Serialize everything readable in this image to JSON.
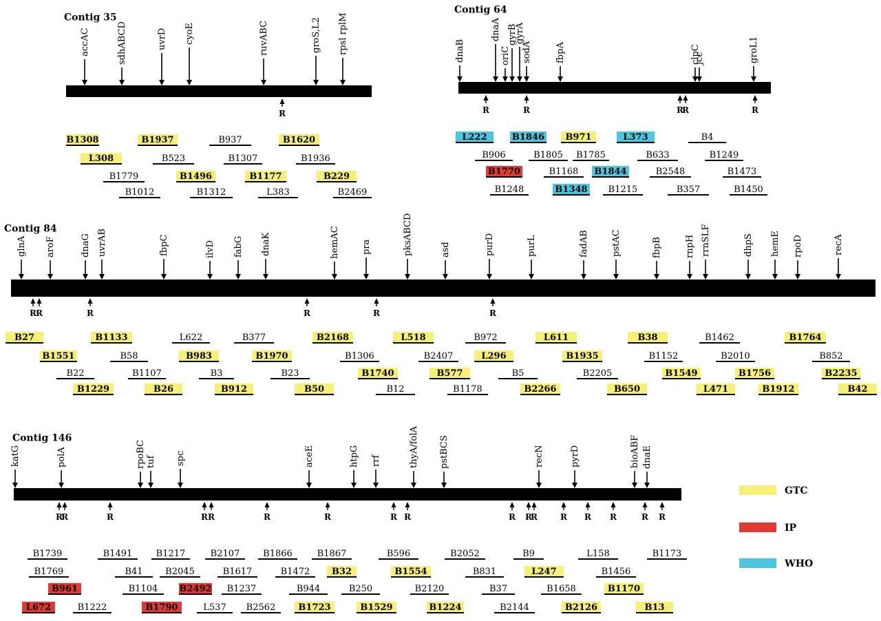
{
  "colors": {
    "GTC": "#f6ef78",
    "IP": "#e03a34",
    "WHO": "#4fc6de",
    "none": "none"
  },
  "legend": [
    {
      "key": "GTC",
      "label": "GTC"
    },
    {
      "key": "IP",
      "label": "IP"
    },
    {
      "key": "WHO",
      "label": "WHO"
    }
  ],
  "contigs": [
    {
      "id": "c35",
      "title": "Contig 35",
      "genes": [
        {
          "label": "accAC"
        },
        {
          "label": "sdhABCD"
        },
        {
          "label": "uvrD"
        },
        {
          "label": "cyoE"
        },
        {
          "label": "ruvABC"
        },
        {
          "label": "groS,L2"
        },
        {
          "label": "rpsl rplM"
        }
      ],
      "r_markers": [
        "R"
      ],
      "clones": [
        {
          "label": "B1308",
          "hl": "GTC"
        },
        {
          "label": "B1937",
          "hl": "GTC"
        },
        {
          "label": "B937",
          "hl": "none"
        },
        {
          "label": "B1620",
          "hl": "GTC"
        },
        {
          "label": "L308",
          "hl": "GTC"
        },
        {
          "label": "B523",
          "hl": "none"
        },
        {
          "label": "B1307",
          "hl": "none"
        },
        {
          "label": "B1936",
          "hl": "none"
        },
        {
          "label": "B1779",
          "hl": "none"
        },
        {
          "label": "B1496",
          "hl": "GTC"
        },
        {
          "label": "B1177",
          "hl": "GTC"
        },
        {
          "label": "B229",
          "hl": "GTC"
        },
        {
          "label": "B1012",
          "hl": "none"
        },
        {
          "label": "B1312",
          "hl": "none"
        },
        {
          "label": "L383",
          "hl": "none"
        },
        {
          "label": "B2469",
          "hl": "none"
        }
      ]
    },
    {
      "id": "c64",
      "title": "Contig 64",
      "genes": [
        {
          "label": "dnaB"
        },
        {
          "label": "dnaA"
        },
        {
          "label": "oriC"
        },
        {
          "label": "gyrB"
        },
        {
          "label": "gyrA"
        },
        {
          "label": "sodA"
        },
        {
          "label": "fbpA"
        },
        {
          "label": "clpC"
        },
        {
          "label": "jcc"
        },
        {
          "label": "groL1"
        }
      ],
      "r_markers": [
        "R",
        "R",
        "R",
        "R",
        "R"
      ],
      "clones": [
        {
          "label": "L222",
          "hl": "WHO"
        },
        {
          "label": "B1846",
          "hl": "WHO"
        },
        {
          "label": "B971",
          "hl": "GTC"
        },
        {
          "label": "L373",
          "hl": "WHO"
        },
        {
          "label": "B4",
          "hl": "none"
        },
        {
          "label": "B906",
          "hl": "none"
        },
        {
          "label": "B1805",
          "hl": "none"
        },
        {
          "label": "B1785",
          "hl": "none"
        },
        {
          "label": "B633",
          "hl": "none"
        },
        {
          "label": "B1249",
          "hl": "none"
        },
        {
          "label": "B1770",
          "hl": "IP"
        },
        {
          "label": "B1168",
          "hl": "none"
        },
        {
          "label": "B1844",
          "hl": "WHO"
        },
        {
          "label": "B2548",
          "hl": "none"
        },
        {
          "label": "B1473",
          "hl": "none"
        },
        {
          "label": "B1248",
          "hl": "none"
        },
        {
          "label": "B1348",
          "hl": "WHO"
        },
        {
          "label": "B1215",
          "hl": "none"
        },
        {
          "label": "B357",
          "hl": "none"
        },
        {
          "label": "B1450",
          "hl": "none"
        }
      ]
    },
    {
      "id": "c84",
      "title": "Contig 84",
      "genes": [
        {
          "label": "glnA"
        },
        {
          "label": "aroF"
        },
        {
          "label": "dnaG"
        },
        {
          "label": "uvrAB"
        },
        {
          "label": "fbpC"
        },
        {
          "label": "ilvD"
        },
        {
          "label": "fabG"
        },
        {
          "label": "dnaK"
        },
        {
          "label": "hemAC"
        },
        {
          "label": "pra"
        },
        {
          "label": "pksABCD"
        },
        {
          "label": "asd"
        },
        {
          "label": "purD"
        },
        {
          "label": "purL"
        },
        {
          "label": "fadAB"
        },
        {
          "label": "pstAC"
        },
        {
          "label": "fbpB"
        },
        {
          "label": "rnpH"
        },
        {
          "label": "rrnSLF"
        },
        {
          "label": "dhpS"
        },
        {
          "label": "hemE"
        },
        {
          "label": "rpoD"
        },
        {
          "label": "recA"
        }
      ],
      "r_markers": [
        "R",
        "R",
        "R",
        "R",
        "R",
        "R"
      ],
      "clones": [
        {
          "label": "B27",
          "hl": "GTC"
        },
        {
          "label": "B1133",
          "hl": "GTC"
        },
        {
          "label": "L622",
          "hl": "none"
        },
        {
          "label": "B377",
          "hl": "none"
        },
        {
          "label": "B2168",
          "hl": "GTC"
        },
        {
          "label": "L518",
          "hl": "GTC"
        },
        {
          "label": "B972",
          "hl": "none"
        },
        {
          "label": "L611",
          "hl": "GTC"
        },
        {
          "label": "B38",
          "hl": "GTC"
        },
        {
          "label": "B1462",
          "hl": "none"
        },
        {
          "label": "B1764",
          "hl": "GTC"
        },
        {
          "label": "B1551",
          "hl": "GTC"
        },
        {
          "label": "B58",
          "hl": "none"
        },
        {
          "label": "B983",
          "hl": "GTC"
        },
        {
          "label": "B1970",
          "hl": "GTC"
        },
        {
          "label": "B1306",
          "hl": "none"
        },
        {
          "label": "B2407",
          "hl": "none"
        },
        {
          "label": "L296",
          "hl": "GTC"
        },
        {
          "label": "B1935",
          "hl": "GTC"
        },
        {
          "label": "B1152",
          "hl": "none"
        },
        {
          "label": "B2010",
          "hl": "none"
        },
        {
          "label": "B852",
          "hl": "none"
        },
        {
          "label": "B22",
          "hl": "none"
        },
        {
          "label": "B1107",
          "hl": "none"
        },
        {
          "label": "B3",
          "hl": "none"
        },
        {
          "label": "B23",
          "hl": "none"
        },
        {
          "label": "B1740",
          "hl": "GTC"
        },
        {
          "label": "B577",
          "hl": "GTC"
        },
        {
          "label": "B5",
          "hl": "none"
        },
        {
          "label": "B2205",
          "hl": "none"
        },
        {
          "label": "B1549",
          "hl": "GTC"
        },
        {
          "label": "B1756",
          "hl": "GTC"
        },
        {
          "label": "B2235",
          "hl": "GTC"
        },
        {
          "label": "B1229",
          "hl": "GTC"
        },
        {
          "label": "B26",
          "hl": "GTC"
        },
        {
          "label": "B912",
          "hl": "GTC"
        },
        {
          "label": "B50",
          "hl": "GTC"
        },
        {
          "label": "B12",
          "hl": "none"
        },
        {
          "label": "B1178",
          "hl": "none"
        },
        {
          "label": "B2266",
          "hl": "GTC"
        },
        {
          "label": "B650",
          "hl": "GTC"
        },
        {
          "label": "L471",
          "hl": "GTC"
        },
        {
          "label": "B1912",
          "hl": "GTC"
        },
        {
          "label": "B42",
          "hl": "GTC"
        }
      ]
    },
    {
      "id": "c146",
      "title": "Contig 146",
      "genes": [
        {
          "label": "katG"
        },
        {
          "label": "polA"
        },
        {
          "label": "rpoBC"
        },
        {
          "label": "tuf"
        },
        {
          "label": "spc"
        },
        {
          "label": "aceE"
        },
        {
          "label": "htpG"
        },
        {
          "label": "rrf"
        },
        {
          "label": "thyA/folA"
        },
        {
          "label": "pstBCS"
        },
        {
          "label": "recN"
        },
        {
          "label": "pyrD"
        },
        {
          "label": "bioABF"
        },
        {
          "label": "dnaE"
        }
      ],
      "r_markers": [
        "R",
        "R",
        "R",
        "R",
        "R",
        "R",
        "R",
        "R",
        "R",
        "R",
        "R",
        "R",
        "R",
        "R",
        "R",
        "R",
        "R"
      ],
      "clones": [
        {
          "label": "B1739",
          "hl": "none"
        },
        {
          "label": "B1491",
          "hl": "none"
        },
        {
          "label": "B1217",
          "hl": "none"
        },
        {
          "label": "B2107",
          "hl": "none"
        },
        {
          "label": "B1866",
          "hl": "none"
        },
        {
          "label": "B1867",
          "hl": "none"
        },
        {
          "label": "B596",
          "hl": "none"
        },
        {
          "label": "B2052",
          "hl": "none"
        },
        {
          "label": "B9",
          "hl": "none"
        },
        {
          "label": "L158",
          "hl": "none"
        },
        {
          "label": "B1173",
          "hl": "none"
        },
        {
          "label": "B1769",
          "hl": "none"
        },
        {
          "label": "B41",
          "hl": "none"
        },
        {
          "label": "B2045",
          "hl": "none"
        },
        {
          "label": "B1617",
          "hl": "none"
        },
        {
          "label": "B1472",
          "hl": "none"
        },
        {
          "label": "B32",
          "hl": "GTC"
        },
        {
          "label": "B1554",
          "hl": "GTC"
        },
        {
          "label": "B831",
          "hl": "none"
        },
        {
          "label": "L247",
          "hl": "GTC"
        },
        {
          "label": "B1456",
          "hl": "none"
        },
        {
          "label": "B961",
          "hl": "IP"
        },
        {
          "label": "B1104",
          "hl": "none"
        },
        {
          "label": "B2492",
          "hl": "IP"
        },
        {
          "label": "B1237",
          "hl": "none"
        },
        {
          "label": "B944",
          "hl": "none"
        },
        {
          "label": "B250",
          "hl": "none"
        },
        {
          "label": "B2120",
          "hl": "none"
        },
        {
          "label": "B37",
          "hl": "none"
        },
        {
          "label": "B1658",
          "hl": "none"
        },
        {
          "label": "B1170",
          "hl": "GTC"
        },
        {
          "label": "L672",
          "hl": "IP"
        },
        {
          "label": "B1222",
          "hl": "none"
        },
        {
          "label": "B1790",
          "hl": "IP"
        },
        {
          "label": "L537",
          "hl": "none"
        },
        {
          "label": "B2562",
          "hl": "none"
        },
        {
          "label": "B1723",
          "hl": "GTC"
        },
        {
          "label": "B1529",
          "hl": "GTC"
        },
        {
          "label": "B1224",
          "hl": "GTC"
        },
        {
          "label": "B2144",
          "hl": "none"
        },
        {
          "label": "B2126",
          "hl": "GTC"
        },
        {
          "label": "B13",
          "hl": "GTC"
        }
      ]
    }
  ]
}
